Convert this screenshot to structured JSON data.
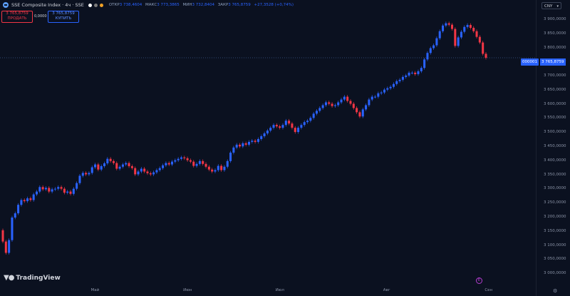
{
  "header": {
    "title": "SSE Composite Index · 4ч · SSE",
    "ohlc": [
      {
        "k": "ОТКР",
        "v": "3 738,4604"
      },
      {
        "k": "МАКС",
        "v": "3 773,3865"
      },
      {
        "k": "МИН",
        "v": "3 732,8404"
      },
      {
        "k": "ЗАКР",
        "v": "3 765,8759"
      },
      {
        "k": "",
        "v": "+27,3528 (+0,74%)"
      }
    ],
    "dot_colors": [
      "#ffffff",
      "#7a7a7a",
      "#f0a126"
    ]
  },
  "trade": {
    "sell_price": "3 765,8759",
    "sell_label": "ПРОДАТЬ",
    "spread": "0,0000",
    "buy_price": "3 765,8759",
    "buy_label": "КУПИТЬ"
  },
  "currency": "CNY",
  "price_tag": {
    "symbol": "000001",
    "value": "3 765,8759"
  },
  "brand": "TradingView",
  "event_icon": "E",
  "colors": {
    "up": "#2962ff",
    "down": "#f23645",
    "bg": "#0b1120"
  },
  "chart_data": {
    "type": "candlestick",
    "ylim": [
      2960,
      3920
    ],
    "y_ticks": [
      "3 900,0000",
      "3 850,0000",
      "3 800,0000",
      "3 750,0000",
      "3 700,0000",
      "3 650,0000",
      "3 600,0000",
      "3 550,0000",
      "3 500,0000",
      "3 450,0000",
      "3 400,0000",
      "3 350,0000",
      "3 300,0000",
      "3 250,0000",
      "3 200,0000",
      "3 150,0000",
      "3 100,0000",
      "3 050,0000",
      "3 000,0000"
    ],
    "y_tick_values": [
      3900,
      3850,
      3800,
      3750,
      3700,
      3650,
      3600,
      3550,
      3500,
      3450,
      3400,
      3350,
      3300,
      3250,
      3200,
      3150,
      3100,
      3050,
      3000
    ],
    "x_ticks": [
      "Май",
      "Июн",
      "Июл",
      "Авг",
      "Сен"
    ],
    "x_tick_index": [
      30,
      60,
      90,
      125,
      158
    ],
    "last_price": 3765.8759,
    "closes": [
      3115,
      3075,
      3120,
      3200,
      3215,
      3245,
      3262,
      3258,
      3268,
      3262,
      3282,
      3292,
      3308,
      3300,
      3305,
      3292,
      3300,
      3302,
      3308,
      3302,
      3288,
      3292,
      3284,
      3302,
      3322,
      3348,
      3358,
      3353,
      3358,
      3378,
      3388,
      3370,
      3382,
      3392,
      3408,
      3400,
      3393,
      3373,
      3380,
      3388,
      3393,
      3382,
      3375,
      3353,
      3363,
      3373,
      3363,
      3357,
      3353,
      3360,
      3368,
      3375,
      3385,
      3393,
      3388,
      3398,
      3403,
      3408,
      3413,
      3410,
      3403,
      3398,
      3383,
      3390,
      3400,
      3390,
      3380,
      3370,
      3363,
      3368,
      3383,
      3368,
      3380,
      3400,
      3430,
      3448,
      3458,
      3452,
      3463,
      3458,
      3468,
      3472,
      3468,
      3478,
      3488,
      3498,
      3508,
      3518,
      3528,
      3523,
      3518,
      3528,
      3543,
      3533,
      3518,
      3503,
      3518,
      3528,
      3538,
      3543,
      3553,
      3568,
      3578,
      3588,
      3598,
      3608,
      3603,
      3595,
      3598,
      3608,
      3618,
      3628,
      3613,
      3603,
      3588,
      3573,
      3558,
      3583,
      3598,
      3618,
      3628,
      3628,
      3640,
      3643,
      3653,
      3658,
      3663,
      3673,
      3683,
      3688,
      3698,
      3703,
      3713,
      3713,
      3708,
      3718,
      3730,
      3760,
      3783,
      3800,
      3810,
      3835,
      3860,
      3880,
      3888,
      3883,
      3868,
      3808,
      3838,
      3858,
      3875,
      3882,
      3872,
      3860,
      3840,
      3820,
      3780,
      3765.8759
    ]
  }
}
